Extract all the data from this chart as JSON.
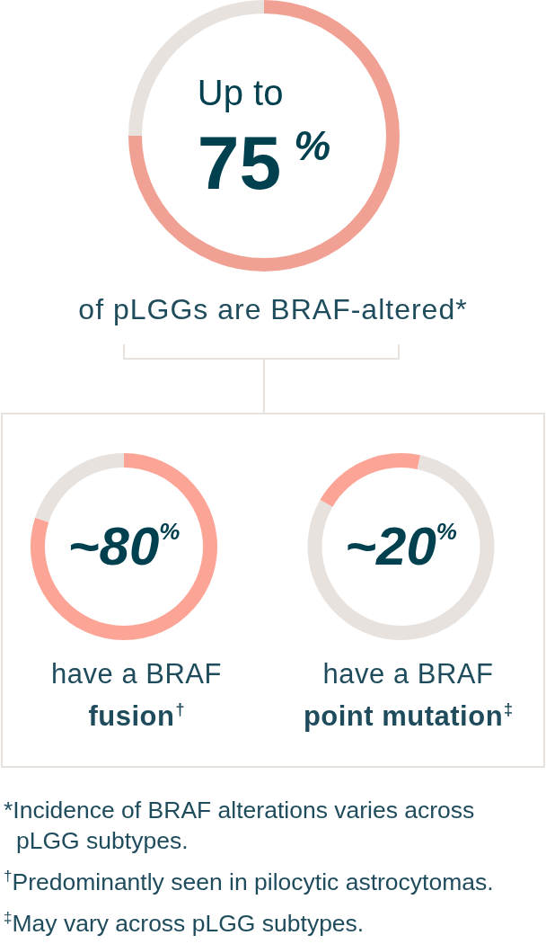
{
  "chart_data": [
    {
      "type": "donut",
      "categories": [
        null,
        null
      ],
      "values": [
        75,
        25
      ],
      "colors": [
        "#f0a193",
        "#e7e2de"
      ],
      "annotations": [
        "Up to",
        "75$^{%}$",
        "of pLGGs are BRAF-altered*"
      ]
    },
    {
      "type": "donut",
      "categories": [
        null,
        null
      ],
      "values": [
        80,
        20
      ],
      "colors": [
        "#fca596",
        "#e7e2de"
      ],
      "annotations": [
        "~80$^{%}$",
        "have a BRAF",
        "fusion$^{†}$"
      ]
    },
    {
      "type": "donut",
      "categories": [
        null,
        null
      ],
      "values": [
        20,
        80
      ],
      "colors": [
        "#fca596",
        "#e7e2de"
      ],
      "annotations": [
        "~20$^{%}$",
        "have a BRAF",
        "point mutation$^{‡}$"
      ]
    },
    {
      "type": "other",
      "annotations": [
        "*Incidence of BRAF alterations varies across pLGG subtypes.",
        "$^{†}$Predominantly seen in pilocytic astrocytomas.",
        "$^{‡}$May vary across pLGG subtypes."
      ]
    }
  ]
}
